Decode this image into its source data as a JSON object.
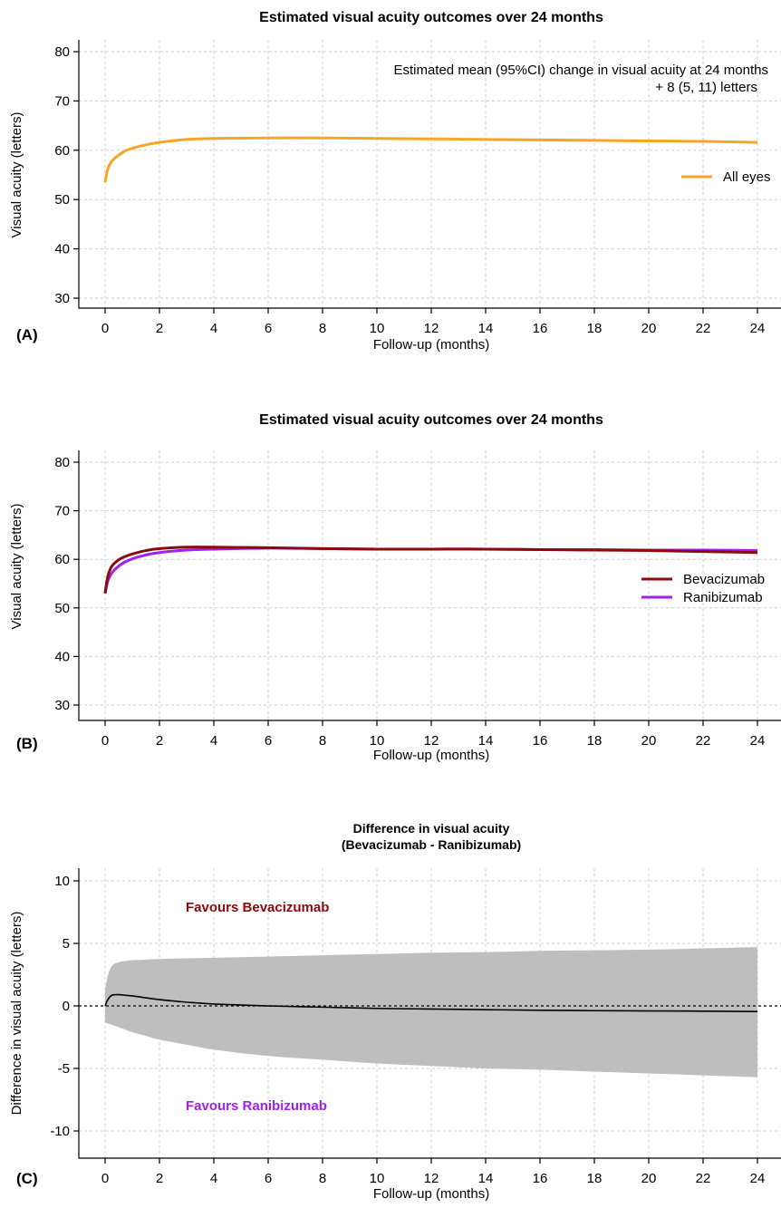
{
  "chart_data": [
    {
      "panel": "(A)",
      "type": "line",
      "title": "Estimated visual acuity outcomes over 24 months",
      "xlabel": "Follow-up (months)",
      "ylabel": "Visual acuity (letters)",
      "xlim": [
        0,
        24
      ],
      "ylim": [
        30,
        80
      ],
      "xticks": [
        "0",
        "2",
        "4",
        "6",
        "8",
        "10",
        "12",
        "14",
        "16",
        "18",
        "20",
        "22",
        "24"
      ],
      "yticks": [
        "30",
        "40",
        "50",
        "60",
        "70",
        "80"
      ],
      "grid": true,
      "legend_position": "right",
      "annotation_line1": "Estimated mean (95%CI) change in visual acuity at 24 months",
      "annotation_line2": "+ 8 (5, 11) letters",
      "series": [
        {
          "name": "All eyes",
          "color": "#F5A623",
          "x": [
            0,
            0.1,
            0.25,
            0.5,
            0.75,
            1,
            1.5,
            2,
            3,
            4,
            6,
            8,
            10,
            12,
            14,
            16,
            18,
            20,
            22,
            24
          ],
          "y": [
            53.5,
            56.2,
            57.8,
            59.0,
            59.9,
            60.4,
            61.1,
            61.6,
            62.2,
            62.4,
            62.5,
            62.5,
            62.4,
            62.3,
            62.2,
            62.1,
            62.0,
            61.9,
            61.8,
            61.6
          ]
        }
      ]
    },
    {
      "panel": "(B)",
      "type": "line",
      "title": "Estimated visual acuity outcomes over 24 months",
      "xlabel": "Follow-up (months)",
      "ylabel": "Visual acuity (letters)",
      "xlim": [
        0,
        24
      ],
      "ylim": [
        30,
        80
      ],
      "xticks": [
        "0",
        "2",
        "4",
        "6",
        "8",
        "10",
        "12",
        "14",
        "16",
        "18",
        "20",
        "22",
        "24"
      ],
      "yticks": [
        "30",
        "40",
        "50",
        "60",
        "70",
        "80"
      ],
      "grid": true,
      "legend_position": "right",
      "series": [
        {
          "name": "Bevacizumab",
          "color": "#8B0A0A",
          "x": [
            0,
            0.1,
            0.25,
            0.5,
            0.75,
            1,
            1.5,
            2,
            3,
            4,
            6,
            8,
            10,
            12,
            14,
            16,
            18,
            20,
            22,
            24
          ],
          "y": [
            53.0,
            56.5,
            58.6,
            59.9,
            60.6,
            61.1,
            61.8,
            62.2,
            62.5,
            62.5,
            62.4,
            62.2,
            62.1,
            62.1,
            62.1,
            62.0,
            61.9,
            61.8,
            61.6,
            61.4
          ]
        },
        {
          "name": "Ranibizumab",
          "color": "#A020F0",
          "x": [
            0,
            0.1,
            0.25,
            0.5,
            0.75,
            1,
            1.5,
            2,
            3,
            4,
            6,
            8,
            10,
            12,
            14,
            16,
            18,
            20,
            22,
            24
          ],
          "y": [
            53.0,
            55.5,
            57.2,
            58.6,
            59.5,
            60.1,
            60.9,
            61.4,
            61.9,
            62.1,
            62.3,
            62.2,
            62.1,
            62.1,
            62.1,
            62.0,
            62.0,
            61.9,
            61.9,
            61.8
          ]
        }
      ]
    },
    {
      "panel": "(C)",
      "type": "area",
      "title_line1": "Difference in visual acuity",
      "title_line2": "(Bevacizumab - Ranibizumab)",
      "xlabel": "Follow-up (months)",
      "ylabel": "Difference in visual acuity (letters)",
      "xlim": [
        0,
        24
      ],
      "ylim": [
        -10,
        10
      ],
      "xticks": [
        "0",
        "2",
        "4",
        "6",
        "8",
        "10",
        "12",
        "14",
        "16",
        "18",
        "20",
        "22",
        "24"
      ],
      "yticks": [
        "-10",
        "-5",
        "0",
        "5",
        "10"
      ],
      "grid": true,
      "reference_line": 0,
      "favours_top": "Favours Bevacizumab",
      "favours_top_color": "#8B0A0A",
      "favours_bottom": "Favours Ranibizumab",
      "favours_bottom_color": "#A020F0",
      "band_color": "#BEBEBE",
      "estimate": {
        "color": "#000000",
        "x": [
          0,
          0.1,
          0.25,
          0.5,
          0.75,
          1,
          1.5,
          2,
          3,
          4,
          6,
          8,
          10,
          12,
          14,
          16,
          18,
          20,
          22,
          24
        ],
        "y": [
          0.0,
          0.5,
          0.85,
          0.9,
          0.85,
          0.8,
          0.65,
          0.5,
          0.3,
          0.15,
          0.0,
          -0.1,
          -0.2,
          -0.25,
          -0.3,
          -0.35,
          -0.38,
          -0.4,
          -0.42,
          -0.45
        ]
      },
      "ci_upper": {
        "x": [
          0,
          0.1,
          0.25,
          0.5,
          0.75,
          1,
          1.5,
          2,
          3,
          4,
          6,
          8,
          10,
          12,
          14,
          16,
          18,
          20,
          22,
          24
        ],
        "y": [
          1.3,
          2.4,
          3.2,
          3.5,
          3.6,
          3.65,
          3.7,
          3.75,
          3.8,
          3.85,
          3.95,
          4.05,
          4.15,
          4.25,
          4.3,
          4.4,
          4.45,
          4.5,
          4.6,
          4.7
        ]
      },
      "ci_lower": {
        "x": [
          0,
          0.1,
          0.25,
          0.5,
          0.75,
          1,
          1.5,
          2,
          3,
          4,
          6,
          8,
          10,
          12,
          14,
          16,
          18,
          20,
          22,
          24
        ],
        "y": [
          -1.3,
          -1.4,
          -1.5,
          -1.7,
          -1.9,
          -2.1,
          -2.4,
          -2.7,
          -3.1,
          -3.5,
          -4.0,
          -4.3,
          -4.6,
          -4.8,
          -5.0,
          -5.1,
          -5.25,
          -5.4,
          -5.55,
          -5.7
        ]
      }
    }
  ]
}
